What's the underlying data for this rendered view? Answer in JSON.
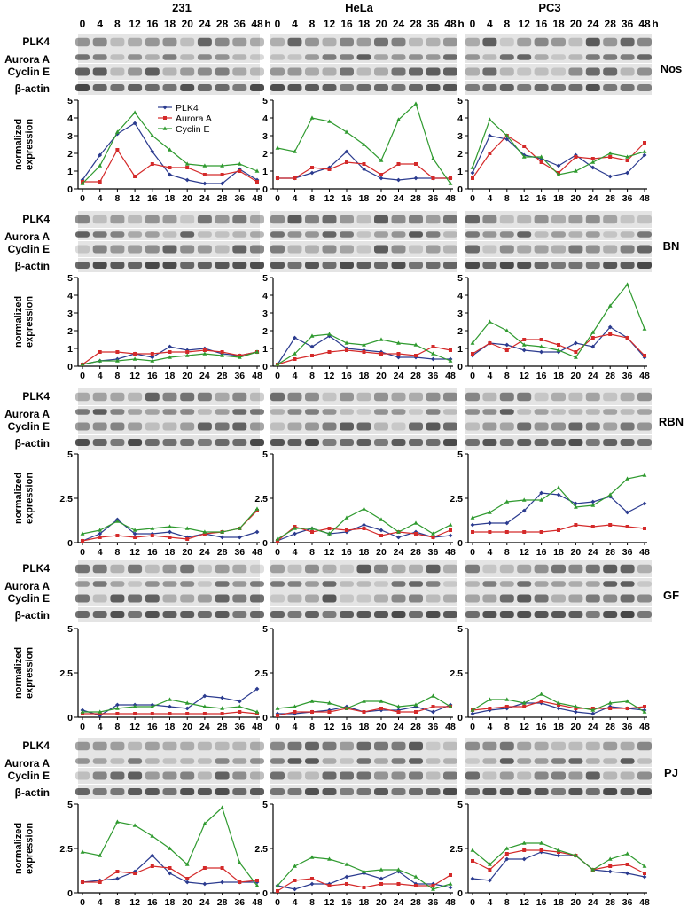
{
  "time_points": [
    "0",
    "4",
    "8",
    "12",
    "16",
    "18",
    "20",
    "24",
    "28",
    "36",
    "48"
  ],
  "time_unit": "h",
  "cell_lines": [
    "231",
    "HeLa",
    "PC3"
  ],
  "protein_labels": [
    "PLK4",
    "Aurora A",
    "Cyclin E",
    "β-actin"
  ],
  "y_axis_label": [
    "normalized",
    "expression"
  ],
  "legend": [
    "PLK4",
    "Aurora A",
    "Cyclin E"
  ],
  "colors": {
    "PLK4": "#2b3b8f",
    "Aurora A": "#d42a2a",
    "Cyclin E": "#2f9a2f",
    "axis": "#000000",
    "blot_band": "#2a2a2a",
    "blot_bg": "#e4e4e4"
  },
  "chart_data": [
    {
      "type": "line",
      "condition": "Nos",
      "cell_line": "231",
      "categories": [
        "0",
        "4",
        "8",
        "12",
        "16",
        "18",
        "20",
        "24",
        "28",
        "36",
        "48"
      ],
      "y_ticks": [
        "0",
        "1",
        "2",
        "3",
        "4",
        "5"
      ],
      "ylim": [
        0,
        5
      ],
      "series": [
        {
          "name": "PLK4",
          "values": [
            0.5,
            1.9,
            3.1,
            3.7,
            2.1,
            0.8,
            0.5,
            0.3,
            0.3,
            1.1,
            0.5
          ]
        },
        {
          "name": "Aurora A",
          "values": [
            0.4,
            0.4,
            2.2,
            0.7,
            1.4,
            1.2,
            1.2,
            0.8,
            0.8,
            1.0,
            0.4
          ]
        },
        {
          "name": "Cyclin E",
          "values": [
            0.3,
            1.3,
            3.2,
            4.3,
            3.0,
            2.2,
            1.4,
            1.3,
            1.3,
            1.4,
            1.0
          ]
        }
      ]
    },
    {
      "type": "line",
      "condition": "Nos",
      "cell_line": "HeLa",
      "categories": [
        "0",
        "4",
        "8",
        "12",
        "16",
        "18",
        "20",
        "24",
        "28",
        "36",
        "48"
      ],
      "y_ticks": [
        "0",
        "1",
        "2",
        "3",
        "4",
        "5"
      ],
      "ylim": [
        0,
        5
      ],
      "series": [
        {
          "name": "PLK4",
          "values": [
            0.6,
            0.6,
            0.9,
            1.2,
            2.1,
            1.1,
            0.6,
            0.5,
            0.6,
            0.6,
            0.6
          ]
        },
        {
          "name": "Aurora A",
          "values": [
            0.6,
            0.6,
            1.2,
            1.1,
            1.5,
            1.4,
            0.8,
            1.4,
            1.4,
            0.6,
            0.6
          ]
        },
        {
          "name": "Cyclin E",
          "values": [
            2.3,
            2.1,
            4.0,
            3.8,
            3.2,
            2.5,
            1.6,
            3.9,
            4.8,
            1.7,
            0.3
          ]
        }
      ]
    },
    {
      "type": "line",
      "condition": "Nos",
      "cell_line": "PC3",
      "categories": [
        "0",
        "4",
        "8",
        "12",
        "16",
        "18",
        "20",
        "24",
        "28",
        "36",
        "48"
      ],
      "y_ticks": [
        "0",
        "1",
        "2",
        "3",
        "4",
        "5"
      ],
      "ylim": [
        0,
        5
      ],
      "series": [
        {
          "name": "PLK4",
          "values": [
            0.9,
            3.0,
            2.8,
            1.9,
            1.7,
            1.3,
            1.9,
            1.2,
            0.7,
            0.9,
            1.9
          ]
        },
        {
          "name": "Aurora A",
          "values": [
            0.6,
            2.0,
            3.0,
            2.4,
            1.5,
            0.9,
            1.8,
            1.7,
            1.8,
            1.6,
            2.6
          ]
        },
        {
          "name": "Cyclin E",
          "values": [
            1.2,
            3.9,
            3.0,
            1.8,
            1.8,
            0.8,
            1.0,
            1.5,
            2.0,
            1.8,
            2.1
          ]
        }
      ]
    },
    {
      "type": "line",
      "condition": "BN",
      "cell_line": "231",
      "categories": [
        "0",
        "4",
        "8",
        "12",
        "16",
        "18",
        "20",
        "24",
        "28",
        "36",
        "48"
      ],
      "y_ticks": [
        "0",
        "1",
        "2",
        "3",
        "4",
        "5"
      ],
      "ylim": [
        0,
        5
      ],
      "series": [
        {
          "name": "PLK4",
          "values": [
            0.1,
            0.3,
            0.4,
            0.7,
            0.5,
            1.1,
            0.9,
            1.0,
            0.7,
            0.6,
            0.8
          ]
        },
        {
          "name": "Aurora A",
          "values": [
            0.1,
            0.8,
            0.8,
            0.7,
            0.7,
            0.8,
            0.8,
            0.9,
            0.8,
            0.6,
            0.8
          ]
        },
        {
          "name": "Cyclin E",
          "values": [
            0.1,
            0.3,
            0.3,
            0.4,
            0.3,
            0.5,
            0.6,
            0.7,
            0.6,
            0.5,
            0.8
          ]
        }
      ]
    },
    {
      "type": "line",
      "condition": "BN",
      "cell_line": "HeLa",
      "categories": [
        "0",
        "4",
        "8",
        "12",
        "16",
        "18",
        "20",
        "24",
        "28",
        "36",
        "48"
      ],
      "y_ticks": [
        "0",
        "1",
        "2",
        "3",
        "4",
        "5"
      ],
      "ylim": [
        0,
        5
      ],
      "series": [
        {
          "name": "PLK4",
          "values": [
            0.1,
            1.6,
            1.1,
            1.7,
            1.0,
            0.9,
            0.8,
            0.5,
            0.5,
            0.4,
            0.4
          ]
        },
        {
          "name": "Aurora A",
          "values": [
            0.1,
            0.4,
            0.6,
            0.8,
            0.9,
            0.8,
            0.7,
            0.7,
            0.6,
            1.1,
            0.9
          ]
        },
        {
          "name": "Cyclin E",
          "values": [
            0.1,
            0.7,
            1.7,
            1.8,
            1.3,
            1.2,
            1.5,
            1.3,
            1.2,
            0.7,
            0.3
          ]
        }
      ]
    },
    {
      "type": "line",
      "condition": "BN",
      "cell_line": "PC3",
      "categories": [
        "0",
        "4",
        "8",
        "12",
        "16",
        "18",
        "20",
        "24",
        "28",
        "36",
        "48"
      ],
      "y_ticks": [
        "0",
        "1",
        "2",
        "3",
        "4",
        "5"
      ],
      "ylim": [
        0,
        5
      ],
      "series": [
        {
          "name": "PLK4",
          "values": [
            0.6,
            1.3,
            1.2,
            0.9,
            0.8,
            0.8,
            1.3,
            1.1,
            2.2,
            1.6,
            0.5
          ]
        },
        {
          "name": "Aurora A",
          "values": [
            0.7,
            1.3,
            0.9,
            1.5,
            1.5,
            1.2,
            0.8,
            1.6,
            1.8,
            1.6,
            0.6
          ]
        },
        {
          "name": "Cyclin E",
          "values": [
            1.3,
            2.5,
            2.0,
            1.2,
            1.1,
            0.9,
            0.5,
            1.9,
            3.4,
            4.6,
            2.1
          ]
        }
      ]
    },
    {
      "type": "line",
      "condition": "RBN",
      "cell_line": "231",
      "categories": [
        "0",
        "4",
        "8",
        "12",
        "16",
        "18",
        "20",
        "24",
        "28",
        "36",
        "48"
      ],
      "y_ticks": [
        "0",
        "2.5",
        "5"
      ],
      "ylim": [
        0,
        5
      ],
      "series": [
        {
          "name": "PLK4",
          "values": [
            0.1,
            0.5,
            1.3,
            0.5,
            0.5,
            0.6,
            0.3,
            0.5,
            0.3,
            0.3,
            0.6
          ]
        },
        {
          "name": "Aurora A",
          "values": [
            0.1,
            0.3,
            0.4,
            0.3,
            0.4,
            0.3,
            0.2,
            0.5,
            0.6,
            0.8,
            1.8
          ]
        },
        {
          "name": "Cyclin E",
          "values": [
            0.5,
            0.7,
            1.2,
            0.7,
            0.8,
            0.9,
            0.8,
            0.6,
            0.6,
            0.8,
            1.9
          ]
        }
      ]
    },
    {
      "type": "line",
      "condition": "RBN",
      "cell_line": "HeLa",
      "categories": [
        "0",
        "4",
        "8",
        "12",
        "16",
        "18",
        "20",
        "24",
        "28",
        "36",
        "48"
      ],
      "y_ticks": [
        "0",
        "2.5",
        "5"
      ],
      "ylim": [
        0,
        5
      ],
      "series": [
        {
          "name": "PLK4",
          "values": [
            0.1,
            0.5,
            0.8,
            0.5,
            0.6,
            1.0,
            0.7,
            0.3,
            0.6,
            0.3,
            0.4
          ]
        },
        {
          "name": "Aurora A",
          "values": [
            0.1,
            0.9,
            0.6,
            0.8,
            0.7,
            0.8,
            0.4,
            0.6,
            0.5,
            0.3,
            0.7
          ]
        },
        {
          "name": "Cyclin E",
          "values": [
            0.2,
            0.8,
            0.8,
            0.5,
            1.4,
            1.9,
            1.3,
            0.6,
            1.1,
            0.5,
            1.0
          ]
        }
      ]
    },
    {
      "type": "line",
      "condition": "RBN",
      "cell_line": "PC3",
      "categories": [
        "0",
        "4",
        "8",
        "12",
        "16",
        "18",
        "20",
        "24",
        "28",
        "36",
        "48"
      ],
      "y_ticks": [
        "0",
        "2.5",
        "5"
      ],
      "ylim": [
        0,
        5
      ],
      "series": [
        {
          "name": "PLK4",
          "values": [
            1.0,
            1.1,
            1.1,
            1.8,
            2.8,
            2.7,
            2.2,
            2.3,
            2.6,
            1.7,
            2.2
          ]
        },
        {
          "name": "Aurora A",
          "values": [
            0.6,
            0.6,
            0.6,
            0.6,
            0.6,
            0.7,
            1.0,
            0.9,
            1.0,
            0.9,
            0.8
          ]
        },
        {
          "name": "Cyclin E",
          "values": [
            1.4,
            1.7,
            2.3,
            2.4,
            2.4,
            3.1,
            2.0,
            2.1,
            2.7,
            3.6,
            3.8
          ]
        }
      ]
    },
    {
      "type": "line",
      "condition": "GF",
      "cell_line": "231",
      "categories": [
        "0",
        "4",
        "8",
        "12",
        "16",
        "18",
        "20",
        "24",
        "28",
        "36",
        "48"
      ],
      "y_ticks": [
        "0",
        "2.5",
        "5"
      ],
      "ylim": [
        0,
        5
      ],
      "series": [
        {
          "name": "PLK4",
          "values": [
            0.4,
            0.1,
            0.7,
            0.7,
            0.7,
            0.6,
            0.5,
            1.2,
            1.1,
            0.9,
            1.6
          ]
        },
        {
          "name": "Aurora A",
          "values": [
            0.2,
            0.2,
            0.2,
            0.2,
            0.2,
            0.2,
            0.2,
            0.2,
            0.2,
            0.3,
            0.2
          ]
        },
        {
          "name": "Cyclin E",
          "values": [
            0.3,
            0.3,
            0.5,
            0.6,
            0.6,
            1.0,
            0.8,
            0.6,
            0.5,
            0.6,
            0.3
          ]
        }
      ]
    },
    {
      "type": "line",
      "condition": "GF",
      "cell_line": "HeLa",
      "categories": [
        "0",
        "4",
        "8",
        "12",
        "16",
        "18",
        "20",
        "24",
        "28",
        "36",
        "48"
      ],
      "y_ticks": [
        "0",
        "2.5",
        "5"
      ],
      "ylim": [
        0,
        5
      ],
      "series": [
        {
          "name": "PLK4",
          "values": [
            0.2,
            0.2,
            0.3,
            0.4,
            0.6,
            0.3,
            0.4,
            0.4,
            0.6,
            0.3,
            0.7
          ]
        },
        {
          "name": "Aurora A",
          "values": [
            0.1,
            0.3,
            0.3,
            0.3,
            0.5,
            0.3,
            0.5,
            0.3,
            0.3,
            0.6,
            0.6
          ]
        },
        {
          "name": "Cyclin E",
          "values": [
            0.5,
            0.6,
            0.9,
            0.8,
            0.5,
            0.9,
            0.9,
            0.6,
            0.7,
            1.2,
            0.6
          ]
        }
      ]
    },
    {
      "type": "line",
      "condition": "GF",
      "cell_line": "PC3",
      "categories": [
        "0",
        "4",
        "8",
        "12",
        "16",
        "18",
        "20",
        "24",
        "28",
        "36",
        "48"
      ],
      "y_ticks": [
        "0",
        "2.5",
        "5"
      ],
      "ylim": [
        0,
        5
      ],
      "series": [
        {
          "name": "PLK4",
          "values": [
            0.2,
            0.4,
            0.5,
            0.8,
            0.8,
            0.5,
            0.3,
            0.2,
            0.6,
            0.5,
            0.4
          ]
        },
        {
          "name": "Aurora A",
          "values": [
            0.4,
            0.5,
            0.6,
            0.6,
            0.9,
            0.7,
            0.5,
            0.5,
            0.5,
            0.5,
            0.6
          ]
        },
        {
          "name": "Cyclin E",
          "values": [
            0.4,
            1.0,
            1.0,
            0.8,
            1.3,
            0.8,
            0.6,
            0.4,
            0.8,
            0.9,
            0.3
          ]
        }
      ]
    },
    {
      "type": "line",
      "condition": "PJ",
      "cell_line": "231",
      "categories": [
        "0",
        "4",
        "8",
        "12",
        "16",
        "18",
        "20",
        "24",
        "28",
        "36",
        "48"
      ],
      "y_ticks": [
        "0",
        "2.5",
        "5"
      ],
      "ylim": [
        0,
        5
      ],
      "series": [
        {
          "name": "PLK4",
          "values": [
            0.6,
            0.7,
            0.8,
            1.2,
            2.1,
            1.1,
            0.6,
            0.5,
            0.6,
            0.6,
            0.6
          ]
        },
        {
          "name": "Aurora A",
          "values": [
            0.6,
            0.6,
            1.2,
            1.1,
            1.5,
            1.4,
            0.8,
            1.4,
            1.4,
            0.6,
            0.7
          ]
        },
        {
          "name": "Cyclin E",
          "values": [
            2.3,
            2.1,
            4.0,
            3.8,
            3.2,
            2.5,
            1.6,
            3.9,
            4.8,
            1.7,
            0.4
          ]
        }
      ]
    },
    {
      "type": "line",
      "condition": "PJ",
      "cell_line": "HeLa",
      "categories": [
        "0",
        "4",
        "8",
        "12",
        "16",
        "18",
        "20",
        "24",
        "28",
        "36",
        "48"
      ],
      "y_ticks": [
        "0",
        "2.5",
        "5"
      ],
      "ylim": [
        0,
        5
      ],
      "series": [
        {
          "name": "PLK4",
          "values": [
            0.4,
            0.2,
            0.5,
            0.5,
            0.9,
            1.1,
            0.8,
            1.2,
            0.5,
            0.5,
            0.3
          ]
        },
        {
          "name": "Aurora A",
          "values": [
            0.1,
            0.7,
            0.8,
            0.4,
            0.5,
            0.3,
            0.5,
            0.5,
            0.4,
            0.4,
            1.0
          ]
        },
        {
          "name": "Cyclin E",
          "values": [
            0.4,
            1.5,
            2.0,
            1.9,
            1.6,
            1.2,
            1.3,
            1.3,
            0.9,
            0.2,
            0.5
          ]
        }
      ]
    },
    {
      "type": "line",
      "condition": "PJ",
      "cell_line": "PC3",
      "categories": [
        "0",
        "4",
        "8",
        "12",
        "16",
        "18",
        "20",
        "24",
        "28",
        "36",
        "48"
      ],
      "y_ticks": [
        "0",
        "2.5",
        "5"
      ],
      "ylim": [
        0,
        5
      ],
      "series": [
        {
          "name": "PLK4",
          "values": [
            0.8,
            0.7,
            1.9,
            1.9,
            2.3,
            2.1,
            2.1,
            1.3,
            1.2,
            1.1,
            0.9
          ]
        },
        {
          "name": "Aurora A",
          "values": [
            1.8,
            1.3,
            2.2,
            2.4,
            2.4,
            2.3,
            2.1,
            1.3,
            1.5,
            1.6,
            1.1
          ]
        },
        {
          "name": "Cyclin E",
          "values": [
            2.4,
            1.6,
            2.5,
            2.8,
            2.8,
            2.4,
            2.1,
            1.3,
            1.9,
            2.2,
            1.5
          ]
        }
      ]
    }
  ]
}
